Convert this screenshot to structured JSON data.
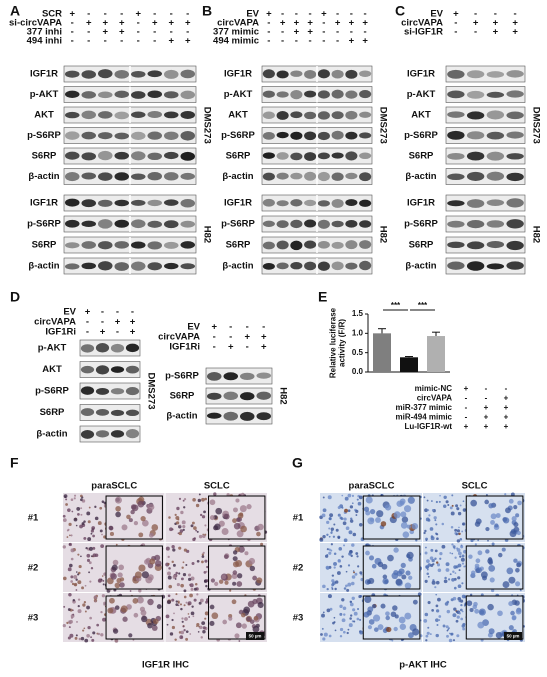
{
  "blot_panels": [
    {
      "letter": "A",
      "conditions": [
        {
          "name": "SCR",
          "signs": [
            "+",
            "-",
            "-",
            "-",
            "+",
            "-",
            "-",
            "-"
          ]
        },
        {
          "name": "si-circVAPA",
          "signs": [
            "-",
            "+",
            "+",
            "+",
            "-",
            "+",
            "+",
            "+"
          ]
        },
        {
          "name": "377 inhi",
          "signs": [
            "-",
            "-",
            "+",
            "+",
            "-",
            "-",
            "-",
            "-"
          ]
        },
        {
          "name": "494 inhi",
          "signs": [
            "-",
            "-",
            "-",
            "-",
            "-",
            "-",
            "+",
            "+"
          ]
        }
      ],
      "blots": [
        {
          "cell_line": "DMS273",
          "rows": [
            "IGF1R",
            "p-AKT",
            "AKT",
            "p-S6RP",
            "S6RP",
            "β-actin"
          ]
        },
        {
          "cell_line": "H82",
          "rows": [
            "IGF1R",
            "p-S6RP",
            "S6RP",
            "β-actin"
          ]
        }
      ]
    },
    {
      "letter": "B",
      "conditions": [
        {
          "name": "EV",
          "signs": [
            "+",
            "-",
            "-",
            "-",
            "+",
            "-",
            "-",
            "-"
          ]
        },
        {
          "name": "circVAPA",
          "signs": [
            "-",
            "+",
            "+",
            "+",
            "-",
            "+",
            "+",
            "+"
          ]
        },
        {
          "name": "377 mimic",
          "signs": [
            "-",
            "-",
            "+",
            "+",
            "-",
            "-",
            "-",
            "-"
          ]
        },
        {
          "name": "494 mimic",
          "signs": [
            "-",
            "-",
            "-",
            "-",
            "-",
            "-",
            "+",
            "+"
          ]
        }
      ],
      "blots": [
        {
          "cell_line": "DMS273",
          "rows": [
            "IGF1R",
            "p-AKT",
            "AKT",
            "p-S6RP",
            "S6RP",
            "β-actin"
          ]
        },
        {
          "cell_line": "H82",
          "rows": [
            "IGF1R",
            "p-S6RP",
            "S6RP",
            "β-actin"
          ]
        }
      ]
    },
    {
      "letter": "C",
      "conditions": [
        {
          "name": "EV",
          "signs": [
            "+",
            "-",
            "-",
            "-"
          ]
        },
        {
          "name": "circVAPA",
          "signs": [
            "-",
            "+",
            "+",
            "+"
          ]
        },
        {
          "name": "si-IGF1R",
          "signs": [
            "-",
            "-",
            "+",
            "+"
          ]
        }
      ],
      "blots": [
        {
          "cell_line": "DMS273",
          "rows": [
            "IGF1R",
            "p-AKT",
            "AKT",
            "p-S6RP",
            "S6RP",
            "β-actin"
          ]
        },
        {
          "cell_line": "H82",
          "rows": [
            "IGF1R",
            "p-S6RP",
            "S6RP",
            "β-actin"
          ]
        }
      ]
    },
    {
      "letter": "D",
      "conditions": [
        {
          "name": "EV",
          "signs": [
            "+",
            "-",
            "-",
            "-"
          ]
        },
        {
          "name": "circVAPA",
          "signs": [
            "-",
            "-",
            "+",
            "+"
          ]
        },
        {
          "name": "IGF1Ri",
          "signs": [
            "-",
            "+",
            "-",
            "+"
          ]
        }
      ],
      "blots": [
        {
          "cell_line": "DMS273",
          "rows": [
            "p-AKT",
            "AKT",
            "p-S6RP",
            "S6RP",
            "β-actin"
          ]
        }
      ]
    },
    {
      "conditions": [
        {
          "name": "EV",
          "signs": [
            "+",
            "-",
            "-",
            "-"
          ]
        },
        {
          "name": "circVAPA",
          "signs": [
            "-",
            "-",
            "+",
            "+"
          ]
        },
        {
          "name": "IGF1Ri",
          "signs": [
            "-",
            "+",
            "-",
            "+"
          ]
        }
      ],
      "blots": [
        {
          "cell_line": "H82",
          "rows": [
            "p-S6RP",
            "S6RP",
            "β-actin"
          ]
        }
      ]
    }
  ],
  "chart_data": {
    "type": "bar",
    "letter": "E",
    "ylabel": [
      "Relative luciferase",
      "activity (F/R)"
    ],
    "values": [
      1.0,
      0.38,
      0.93
    ],
    "errors": [
      0.12,
      0.02,
      0.1
    ],
    "colors": [
      "#7f7f7f",
      "#111111",
      "#b0b0b0"
    ],
    "ylim": [
      0,
      1.5
    ],
    "yticks": [
      {
        "value": 0,
        "label": "0.0"
      },
      {
        "value": 0.5,
        "label": "0.5"
      },
      {
        "value": 1,
        "label": "1.0"
      },
      {
        "value": 1.5,
        "label": "1.5"
      }
    ],
    "annotations": [
      "***",
      "***"
    ],
    "conditions": [
      {
        "name": "mimic-NC",
        "signs": [
          "+",
          "-",
          "-"
        ]
      },
      {
        "name": "circVAPA",
        "signs": [
          "-",
          "-",
          "+"
        ]
      },
      {
        "name": "miR-377 mimic",
        "signs": [
          "-",
          "+",
          "+"
        ]
      },
      {
        "name": "miR-494 mimic",
        "signs": [
          "-",
          "+",
          "+"
        ]
      },
      {
        "name": "Lu-IGF1R-wt",
        "signs": [
          "+",
          "+",
          "+"
        ]
      }
    ]
  },
  "ihc_panels": [
    {
      "letter": "F",
      "columns": [
        "paraSCLC",
        "SCLC"
      ],
      "rows": [
        "#1",
        "#2",
        "#3"
      ],
      "caption": "IGF1R  IHC",
      "scale_bar": "50 µm"
    },
    {
      "letter": "G",
      "columns": [
        "paraSCLC",
        "SCLC"
      ],
      "rows": [
        "#1",
        "#2",
        "#3"
      ],
      "caption": "p-AKT IHC",
      "scale_bar": "50 µm"
    }
  ]
}
